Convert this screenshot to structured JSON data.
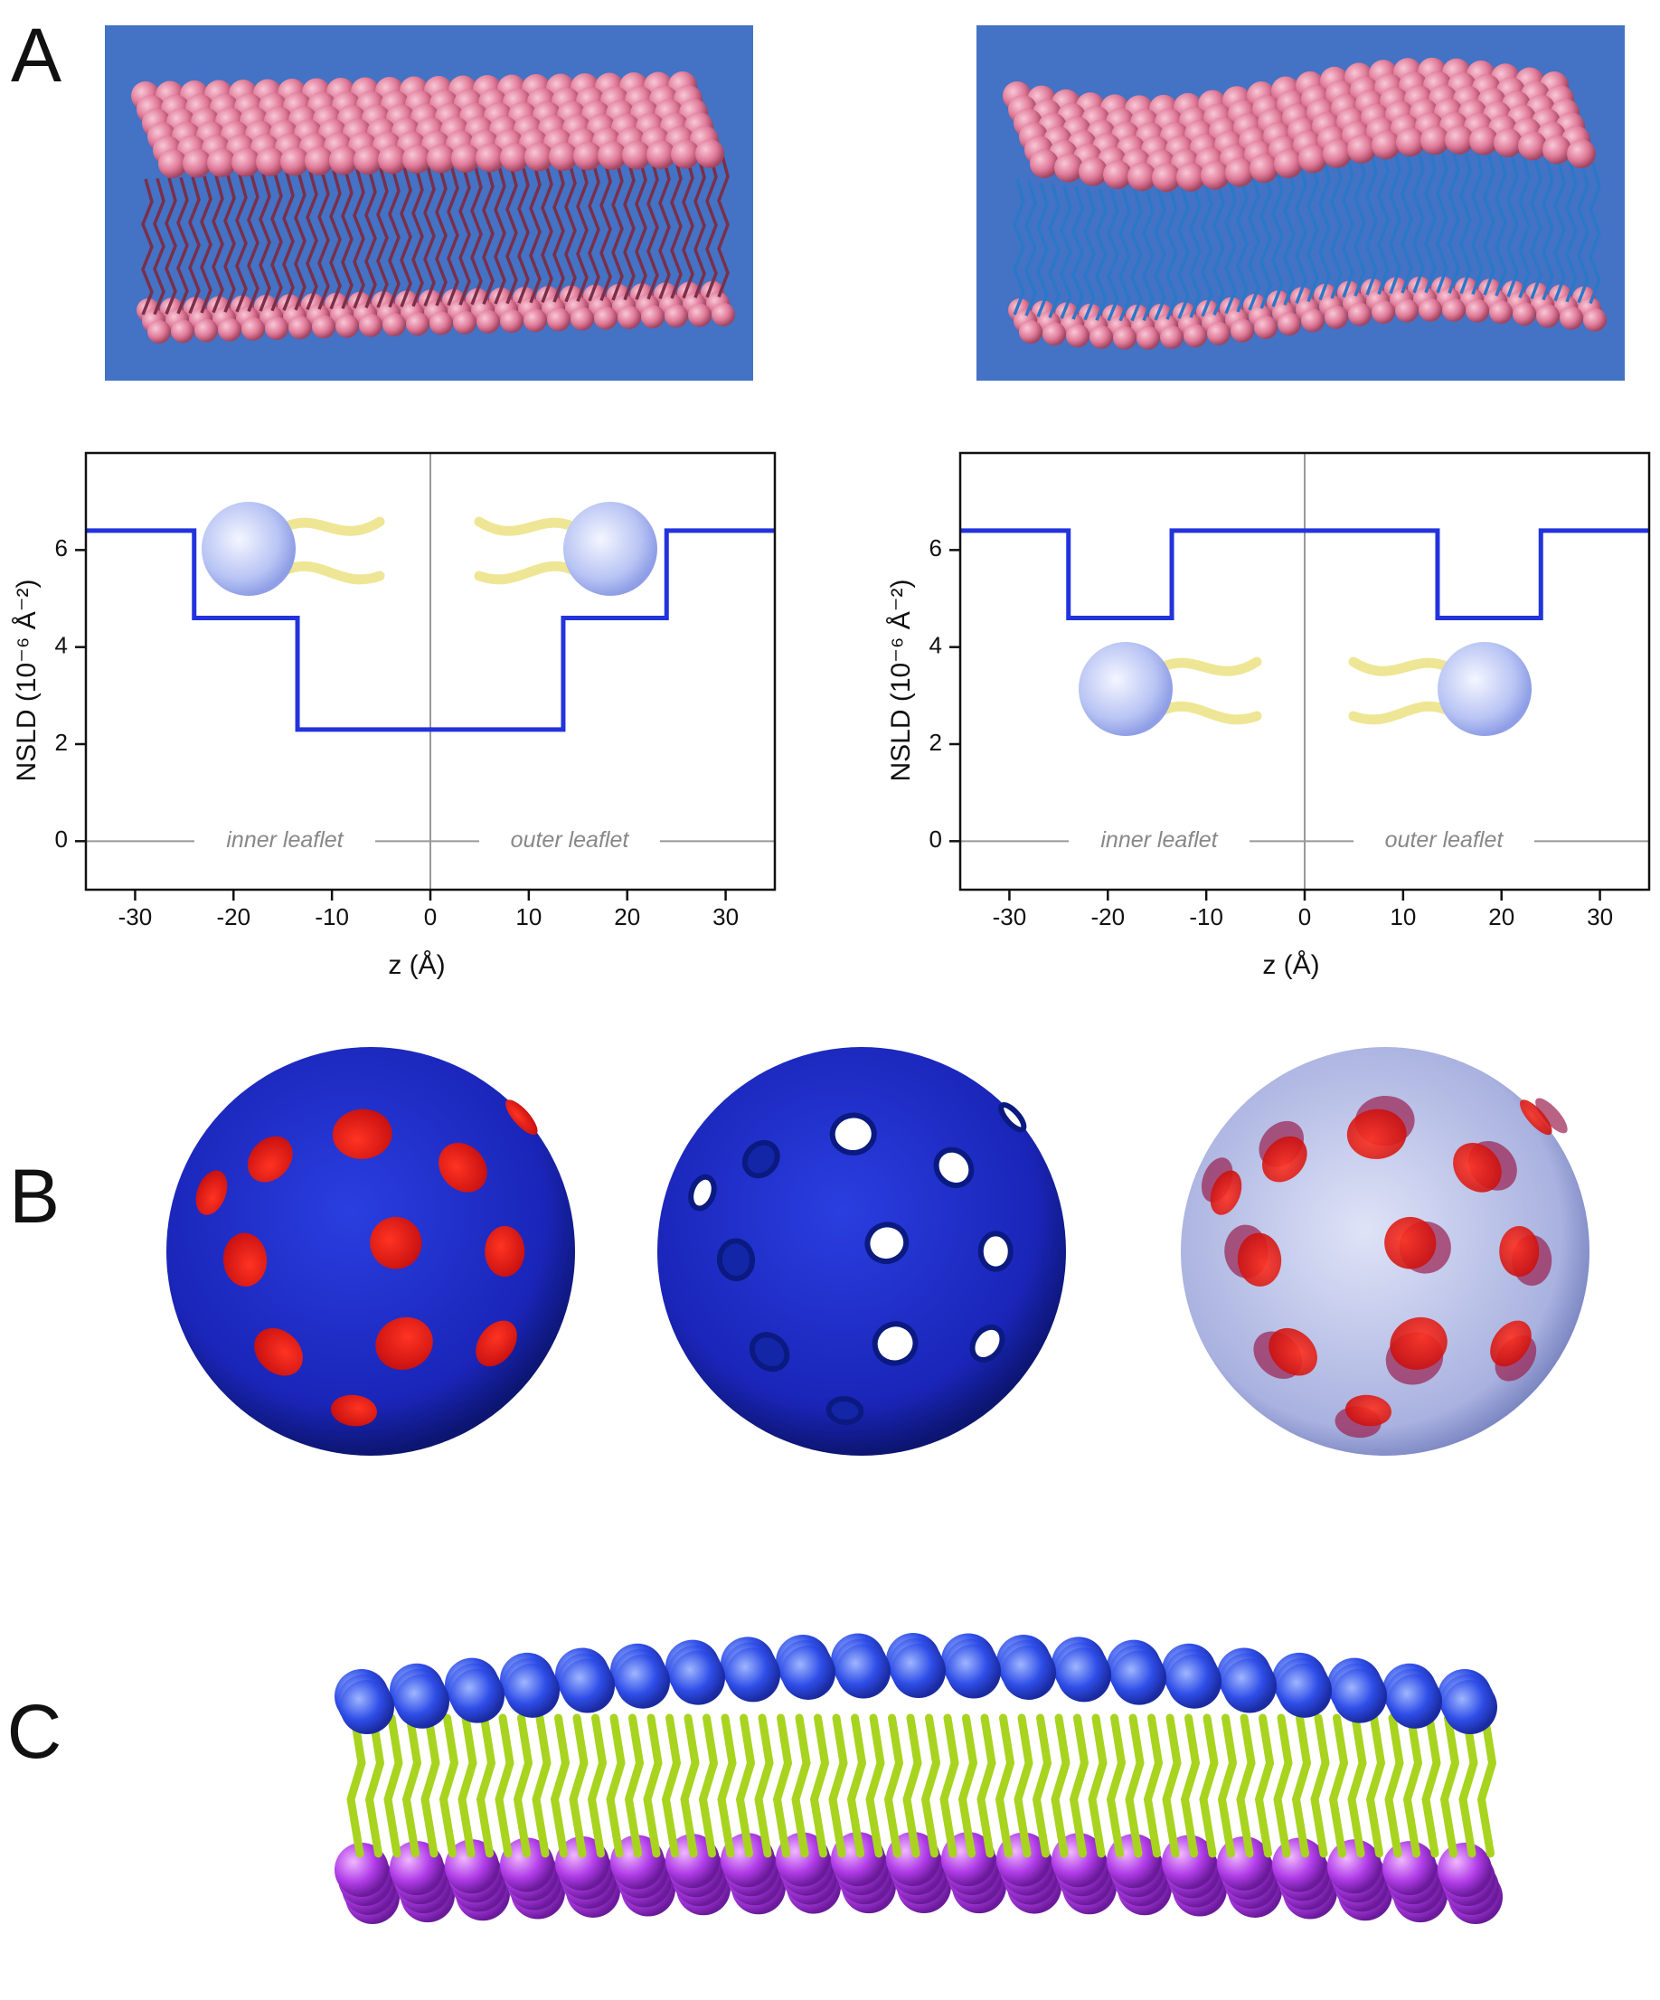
{
  "panel_labels": [
    "A",
    "B",
    "C"
  ],
  "chart_data": [
    {
      "type": "line",
      "xlabel": "z (Å)",
      "ylabel": "NSLD (10⁻⁶ Å⁻²)",
      "x": [
        -35,
        -24,
        -24,
        -13.5,
        -13.5,
        13.5,
        13.5,
        24,
        24,
        35
      ],
      "values": [
        6.4,
        6.4,
        4.6,
        4.6,
        2.3,
        2.3,
        4.6,
        4.6,
        6.4,
        6.4
      ],
      "color": "#2233dd",
      "xlim": [
        -35,
        35
      ],
      "ylim": [
        -1,
        8
      ],
      "xticks": [
        -30,
        -20,
        -10,
        0,
        10,
        20,
        30
      ],
      "yticks": [
        0,
        2,
        4,
        6
      ],
      "annotations": [
        "inner leaflet",
        "outer leaflet"
      ]
    },
    {
      "type": "line",
      "xlabel": "z (Å)",
      "ylabel": "NSLD (10⁻⁶ Å⁻²)",
      "x": [
        -35,
        -24,
        -24,
        -13.5,
        -13.5,
        13.5,
        13.5,
        24,
        24,
        35
      ],
      "values": [
        6.4,
        6.4,
        4.6,
        4.6,
        6.4,
        6.4,
        4.6,
        4.6,
        6.4,
        6.4
      ],
      "color": "#2233dd",
      "xlim": [
        -35,
        35
      ],
      "ylim": [
        -1,
        8
      ],
      "xticks": [
        -30,
        -20,
        -10,
        0,
        10,
        20,
        30
      ],
      "yticks": [
        0,
        2,
        4,
        6
      ],
      "annotations": [
        "inner leaflet",
        "outer leaflet"
      ]
    }
  ]
}
